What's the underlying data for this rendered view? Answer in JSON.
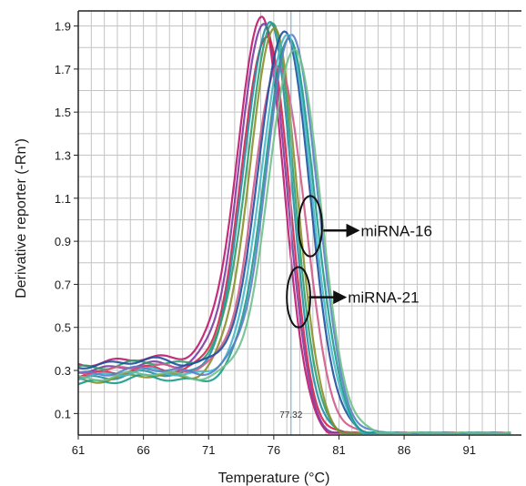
{
  "chart_data": {
    "type": "line",
    "xlabel": "Temperature (°C)",
    "ylabel": "Derivative reporter (-Rn')",
    "x_ticks": [
      61,
      66,
      71,
      76,
      81,
      86,
      91
    ],
    "y_ticks": [
      0.1,
      0.3,
      0.5,
      0.7,
      0.9,
      1.1,
      1.3,
      1.5,
      1.7,
      1.9
    ],
    "xlim": [
      61,
      95
    ],
    "ylim": [
      0.0,
      1.97
    ],
    "grid": true,
    "threshold": {
      "x": 77.32,
      "label": "77.32",
      "color": "#7fb6c8"
    },
    "annotations": [
      {
        "text": "miRNA-16",
        "ellipse_center": [
          78.8,
          0.97
        ],
        "ellipse_radius": [
          0.9,
          0.14
        ],
        "arrow_from": [
          79.8,
          0.95
        ],
        "arrow_to": [
          82.4,
          0.95
        ]
      },
      {
        "text": "miRNA-21",
        "ellipse_center": [
          77.9,
          0.64
        ],
        "ellipse_radius": [
          0.9,
          0.14
        ],
        "arrow_from": [
          78.7,
          0.64
        ],
        "arrow_to": [
          81.4,
          0.64
        ]
      }
    ],
    "series_colors": [
      "#c0166e",
      "#7d3aa0",
      "#d6224a",
      "#1f8fa8",
      "#2e9e68",
      "#1d4f9e",
      "#45b8c8",
      "#8a8f2a",
      "#5a7ec8",
      "#d05a8a",
      "#1a9a8a",
      "#6fc08a"
    ],
    "series": [
      {
        "group": "miRNA-16",
        "peak_x": 75.1,
        "peak_y": 1.93,
        "baseline": 0.33,
        "color_index": 0
      },
      {
        "group": "miRNA-16",
        "peak_x": 75.3,
        "peak_y": 1.91,
        "baseline": 0.3,
        "color_index": 1
      },
      {
        "group": "miRNA-16",
        "peak_x": 75.5,
        "peak_y": 1.86,
        "baseline": 0.28,
        "color_index": 2
      },
      {
        "group": "miRNA-16",
        "peak_x": 75.7,
        "peak_y": 1.92,
        "baseline": 0.26,
        "color_index": 3
      },
      {
        "group": "miRNA-16",
        "peak_x": 75.9,
        "peak_y": 1.9,
        "baseline": 0.31,
        "color_index": 4
      },
      {
        "group": "miRNA-16",
        "peak_x": 76.1,
        "peak_y": 1.88,
        "baseline": 0.25,
        "color_index": 7
      },
      {
        "group": "miRNA-21",
        "peak_x": 76.4,
        "peak_y": 1.72,
        "baseline": 0.29,
        "color_index": 9
      },
      {
        "group": "miRNA-21",
        "peak_x": 76.8,
        "peak_y": 1.88,
        "baseline": 0.32,
        "color_index": 5
      },
      {
        "group": "miRNA-21",
        "peak_x": 77.0,
        "peak_y": 1.85,
        "baseline": 0.27,
        "color_index": 6
      },
      {
        "group": "miRNA-21",
        "peak_x": 77.2,
        "peak_y": 1.83,
        "baseline": 0.24,
        "color_index": 10
      },
      {
        "group": "miRNA-21",
        "peak_x": 77.4,
        "peak_y": 1.86,
        "baseline": 0.28,
        "color_index": 8
      },
      {
        "group": "miRNA-21",
        "peak_x": 77.6,
        "peak_y": 1.8,
        "baseline": 0.26,
        "color_index": 11
      }
    ]
  }
}
